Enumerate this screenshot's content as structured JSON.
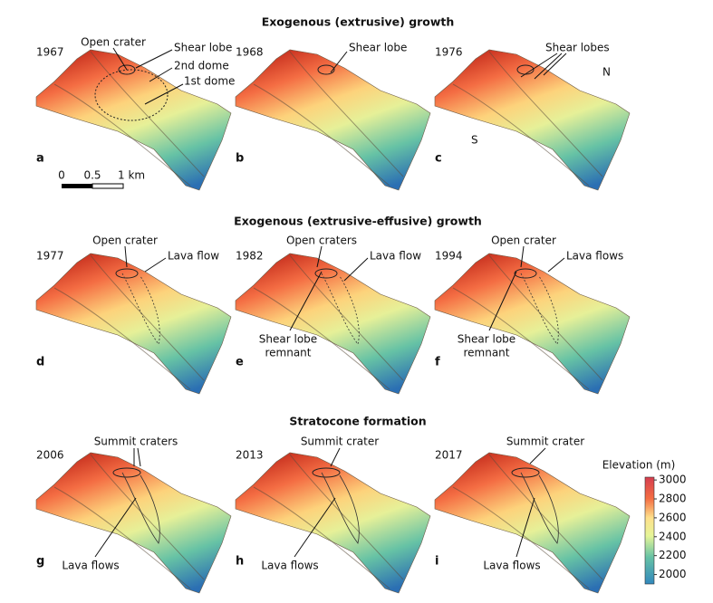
{
  "sections": [
    {
      "title": "Exogenous (extrusive) growth",
      "panels": [
        {
          "year": "1967",
          "letter": "a",
          "labels": [
            "Open crater",
            "Shear lobe",
            "2nd dome",
            "1st dome"
          ]
        },
        {
          "year": "1968",
          "letter": "b",
          "labels": [
            "Shear lobe"
          ]
        },
        {
          "year": "1976",
          "letter": "c",
          "labels": [
            "Shear lobes",
            "N",
            "S"
          ]
        }
      ]
    },
    {
      "title": "Exogenous (extrusive-effusive) growth",
      "panels": [
        {
          "year": "1977",
          "letter": "d",
          "labels": [
            "Open crater",
            "Lava flow"
          ]
        },
        {
          "year": "1982",
          "letter": "e",
          "labels": [
            "Open craters",
            "Lava flow",
            "Shear lobe",
            "remnant"
          ]
        },
        {
          "year": "1994",
          "letter": "f",
          "labels": [
            "Open crater",
            "Lava flows",
            "Shear lobe",
            "remnant"
          ]
        }
      ]
    },
    {
      "title": "Stratocone formation",
      "panels": [
        {
          "year": "2006",
          "letter": "g",
          "labels": [
            "Summit craters",
            "Lava flows"
          ]
        },
        {
          "year": "2013",
          "letter": "h",
          "labels": [
            "Summit crater",
            "Lava flows"
          ]
        },
        {
          "year": "2017",
          "letter": "i",
          "labels": [
            "Summit crater",
            "Lava flows"
          ]
        }
      ]
    }
  ],
  "scale_bar": {
    "labels": [
      "0",
      "0.5",
      "1 km"
    ]
  },
  "colorbar": {
    "title": "Elevation (m)",
    "lim": [
      1900,
      3030
    ],
    "ticks": [
      2000,
      2200,
      2400,
      2600,
      2800,
      3000
    ]
  }
}
